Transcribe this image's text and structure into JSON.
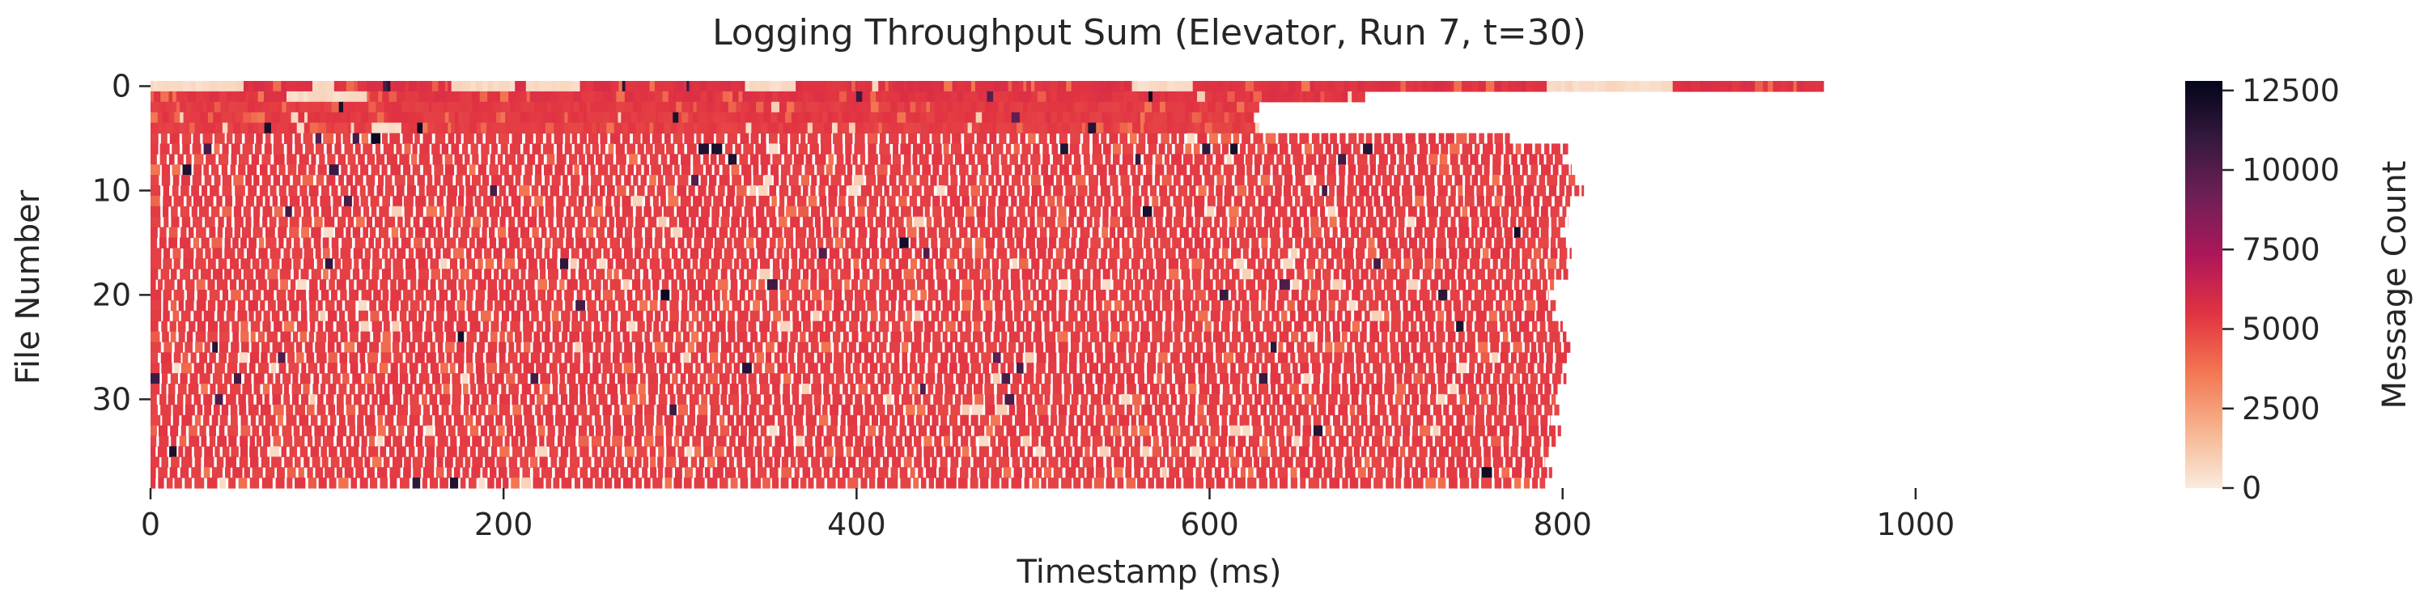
{
  "chart_data": {
    "type": "heatmap",
    "title": "Logging Throughput Sum (Elevator, Run 7, t=30)",
    "xlabel": "Timestamp (ms)",
    "ylabel": "File Number",
    "xlim": [
      0,
      1100
    ],
    "ylim": [
      0,
      39
    ],
    "x_ticks": [
      0,
      200,
      400,
      600,
      800,
      1000
    ],
    "y_ticks": [
      0,
      10,
      20,
      30
    ],
    "colorbar": {
      "label": "Message Count",
      "range": [
        0,
        12800
      ],
      "ticks": [
        0,
        2500,
        5000,
        7500,
        10000,
        12500
      ],
      "colors": [
        "#faebdd",
        "#f6b48f",
        "#f37651",
        "#e13342",
        "#ad1759",
        "#701f57",
        "#35193e",
        "#03051a"
      ]
    },
    "rows": [
      {
        "file": 0,
        "start_ms": 0,
        "end_ms": 948,
        "dominant_count": 5600,
        "low_segments_ms": [
          [
            0,
            52
          ],
          [
            88,
            104
          ],
          [
            170,
            205
          ],
          [
            210,
            240
          ],
          [
            335,
            365
          ],
          [
            405,
            410
          ],
          [
            555,
            590
          ],
          [
            790,
            845
          ],
          [
            845,
            860
          ]
        ]
      },
      {
        "file": 1,
        "start_ms": 0,
        "end_ms": 688,
        "dominant_count": 5500,
        "low_segments_ms": [
          [
            75,
            120
          ]
        ]
      },
      {
        "file": 2,
        "start_ms": 0,
        "end_ms": 628,
        "dominant_count": 5300
      },
      {
        "file": 3,
        "start_ms": 0,
        "end_ms": 625,
        "dominant_count": 5300
      },
      {
        "file": 4,
        "start_ms": 0,
        "end_ms": 628,
        "dominant_count": 5200,
        "low_segments_ms": [
          [
            123,
            142
          ]
        ]
      },
      {
        "file": 5,
        "start_ms": 0,
        "end_ms": 770,
        "dominant_count": 5200
      },
      {
        "file": 6,
        "start_ms": 0,
        "end_ms": 803,
        "dominant_count": 5200
      },
      {
        "file": 7,
        "start_ms": 0,
        "end_ms": 801,
        "dominant_count": 5200
      },
      {
        "file": 8,
        "start_ms": 0,
        "end_ms": 805,
        "dominant_count": 5200
      },
      {
        "file": 9,
        "start_ms": 0,
        "end_ms": 807,
        "dominant_count": 5200
      },
      {
        "file": 10,
        "start_ms": 0,
        "end_ms": 812,
        "dominant_count": 5200
      },
      {
        "file": 11,
        "start_ms": 0,
        "end_ms": 805,
        "dominant_count": 5200
      },
      {
        "file": 12,
        "start_ms": 0,
        "end_ms": 802,
        "dominant_count": 5200
      },
      {
        "file": 13,
        "start_ms": 0,
        "end_ms": 803,
        "dominant_count": 5200
      },
      {
        "file": 14,
        "start_ms": 0,
        "end_ms": 800,
        "dominant_count": 5200
      },
      {
        "file": 15,
        "start_ms": 0,
        "end_ms": 803,
        "dominant_count": 5200
      },
      {
        "file": 16,
        "start_ms": 0,
        "end_ms": 805,
        "dominant_count": 5200
      },
      {
        "file": 17,
        "start_ms": 0,
        "end_ms": 802,
        "dominant_count": 5200
      },
      {
        "file": 18,
        "start_ms": 0,
        "end_ms": 803,
        "dominant_count": 5200
      },
      {
        "file": 19,
        "start_ms": 0,
        "end_ms": 795,
        "dominant_count": 5200
      },
      {
        "file": 20,
        "start_ms": 0,
        "end_ms": 792,
        "dominant_count": 5200
      },
      {
        "file": 21,
        "start_ms": 0,
        "end_ms": 796,
        "dominant_count": 5200
      },
      {
        "file": 22,
        "start_ms": 0,
        "end_ms": 794,
        "dominant_count": 5200
      },
      {
        "file": 23,
        "start_ms": 0,
        "end_ms": 800,
        "dominant_count": 5200
      },
      {
        "file": 24,
        "start_ms": 0,
        "end_ms": 802,
        "dominant_count": 5200
      },
      {
        "file": 25,
        "start_ms": 0,
        "end_ms": 805,
        "dominant_count": 5200
      },
      {
        "file": 26,
        "start_ms": 0,
        "end_ms": 803,
        "dominant_count": 5200
      },
      {
        "file": 27,
        "start_ms": 0,
        "end_ms": 801,
        "dominant_count": 5200
      },
      {
        "file": 28,
        "start_ms": 0,
        "end_ms": 802,
        "dominant_count": 5200
      },
      {
        "file": 29,
        "start_ms": 0,
        "end_ms": 797,
        "dominant_count": 5200
      },
      {
        "file": 30,
        "start_ms": 0,
        "end_ms": 796,
        "dominant_count": 5200
      },
      {
        "file": 31,
        "start_ms": 0,
        "end_ms": 798,
        "dominant_count": 5200
      },
      {
        "file": 32,
        "start_ms": 0,
        "end_ms": 793,
        "dominant_count": 5200
      },
      {
        "file": 33,
        "start_ms": 0,
        "end_ms": 799,
        "dominant_count": 5200
      },
      {
        "file": 34,
        "start_ms": 0,
        "end_ms": 796,
        "dominant_count": 5200
      },
      {
        "file": 35,
        "start_ms": 0,
        "end_ms": 792,
        "dominant_count": 5200
      },
      {
        "file": 36,
        "start_ms": 0,
        "end_ms": 790,
        "dominant_count": 5200
      },
      {
        "file": 37,
        "start_ms": 0,
        "end_ms": 794,
        "dominant_count": 5200
      },
      {
        "file": 38,
        "start_ms": 0,
        "end_ms": 790,
        "dominant_count": 5200
      }
    ]
  }
}
